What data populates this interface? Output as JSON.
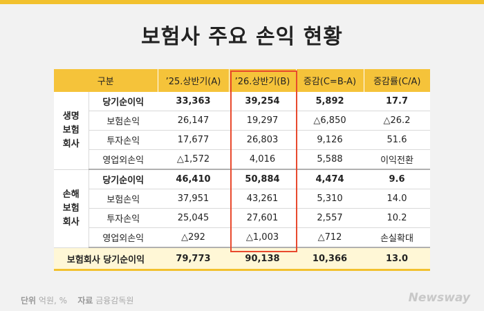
{
  "title": "보험사 주요 손익 현황",
  "header": [
    "구분",
    "’25.상반기(A)",
    "’26.상반기(B)",
    "증감(C=B-A)",
    "증감률(C/A)"
  ],
  "life": {
    "group": [
      "생명",
      "보험",
      "회사"
    ],
    "rows": [
      {
        "label": "당기순이익",
        "a": "33,363",
        "b": "39,254",
        "c": "5,892",
        "r": "17.7"
      },
      {
        "label": "보험손익",
        "a": "26,147",
        "b": "19,297",
        "c": "△6,850",
        "r": "△26.2"
      },
      {
        "label": "투자손익",
        "a": "17,677",
        "b": "26,803",
        "c": "9,126",
        "r": "51.6"
      },
      {
        "label": "영업외손익",
        "a": "△1,572",
        "b": "4,016",
        "c": "5,588",
        "r": "이익전환"
      }
    ]
  },
  "nonlife": {
    "group": [
      "손해",
      "보험",
      "회사"
    ],
    "rows": [
      {
        "label": "당기순이익",
        "a": "46,410",
        "b": "50,884",
        "c": "4,474",
        "r": "9.6"
      },
      {
        "label": "보험손익",
        "a": "37,951",
        "b": "43,261",
        "c": "5,310",
        "r": "14.0"
      },
      {
        "label": "투자손익",
        "a": "25,045",
        "b": "27,601",
        "c": "2,557",
        "r": "10.2"
      },
      {
        "label": "영업외손익",
        "a": "△292",
        "b": "△1,003",
        "c": "△712",
        "r": "손실확대"
      }
    ]
  },
  "total": {
    "label": "보험회사 당기순이익",
    "a": "79,773",
    "b": "90,138",
    "c": "10,366",
    "r": "13.0"
  },
  "footer": {
    "unit_label": "단위",
    "unit_value": "억원, %",
    "source_label": "자료",
    "source_value": "금융감독원"
  },
  "brand": "Newsway",
  "colors": {
    "accent": "#f5c33a",
    "highlight": "#e8492d"
  }
}
